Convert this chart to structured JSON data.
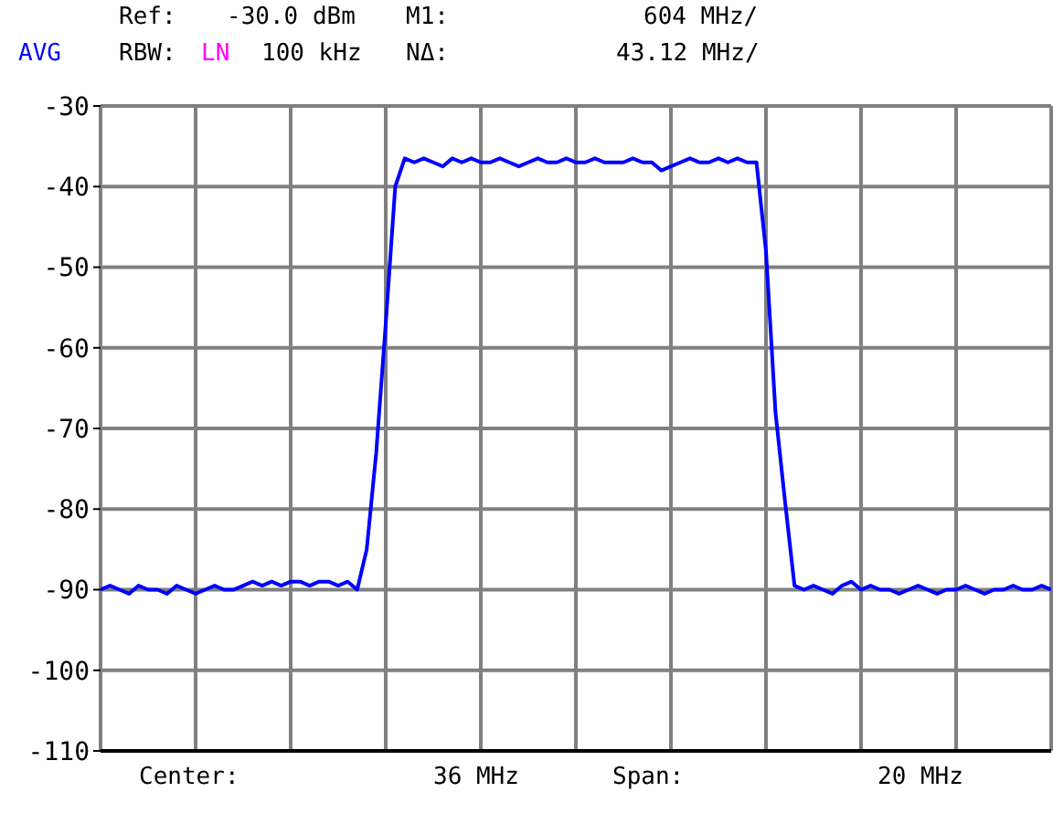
{
  "chart_data": {
    "type": "line",
    "categories": [
      null,
      null,
      null,
      null,
      null,
      null,
      null,
      null,
      null,
      null,
      null,
      null,
      null,
      null,
      null,
      null,
      null,
      null,
      null,
      null,
      null,
      null,
      null,
      null,
      null,
      null,
      null,
      null,
      null,
      null,
      null,
      null,
      null,
      null,
      null,
      null,
      null,
      null,
      null,
      null,
      null,
      null,
      null,
      null,
      null,
      null,
      null,
      null,
      null,
      null,
      null,
      null,
      null,
      null,
      null,
      null,
      null,
      null,
      null,
      null,
      null,
      null,
      null,
      null,
      null,
      null,
      null,
      null,
      null,
      null,
      null,
      null,
      null,
      null,
      null,
      null,
      null,
      null,
      null,
      null,
      null,
      null,
      null,
      null,
      null,
      null,
      null,
      null,
      null,
      null,
      null,
      null,
      null,
      null,
      null,
      null,
      null,
      null,
      null,
      null,
      null
    ],
    "series": [
      {
        "color": "#0000ff",
        "values": [
          -90,
          -89.5,
          -90,
          -90.5,
          -89.5,
          -90,
          -90,
          -90.5,
          -89.5,
          -90,
          -90.5,
          -90,
          -89.5,
          -90,
          -90,
          -89.5,
          -89,
          -89.5,
          -89,
          -89.5,
          -89,
          -89,
          -89.5,
          -89,
          -89,
          -89.5,
          -89,
          -90,
          -85,
          -73,
          -57,
          -40,
          -36.5,
          -37,
          -36.5,
          -37,
          -37.5,
          -36.5,
          -37,
          -36.5,
          -37,
          -37,
          -36.5,
          -37,
          -37.5,
          -37,
          -36.5,
          -37,
          -37,
          -36.5,
          -37,
          -37,
          -36.5,
          -37,
          -37,
          -37,
          -36.5,
          -37,
          -37,
          -38,
          -37.5,
          -37,
          -36.5,
          -37,
          -37,
          -36.5,
          -37,
          -36.5,
          -37,
          -37,
          -48,
          -68,
          -79,
          -89.5,
          -90,
          -89.5,
          -90,
          -90.5,
          -89.5,
          -89,
          -90,
          -89.5,
          -90,
          -90,
          -90.5,
          -90,
          -89.5,
          -90,
          -90.5,
          -90,
          -90,
          -89.5,
          -90,
          -90.5,
          -90,
          -90,
          -89.5,
          -90,
          -90,
          -89.5,
          -90
        ]
      }
    ],
    "ylim": [
      -110,
      -30
    ],
    "yticks": [
      -110,
      -100,
      -90,
      -80,
      -70,
      -60,
      -50,
      -40,
      -30
    ],
    "grid": true,
    "marker": "none",
    "line_style": "solid",
    "tick_labels": "y",
    "annotations": [
      "AVG",
      "Ref:",
      "-30.0 dBm",
      "M1:",
      "604 MHz/",
      "RBW:",
      "LN",
      "100 kHz",
      "NΔ:",
      "43.12 MHz/",
      "Center:",
      "36 MHz",
      "Span:",
      "20 MHz"
    ]
  }
}
